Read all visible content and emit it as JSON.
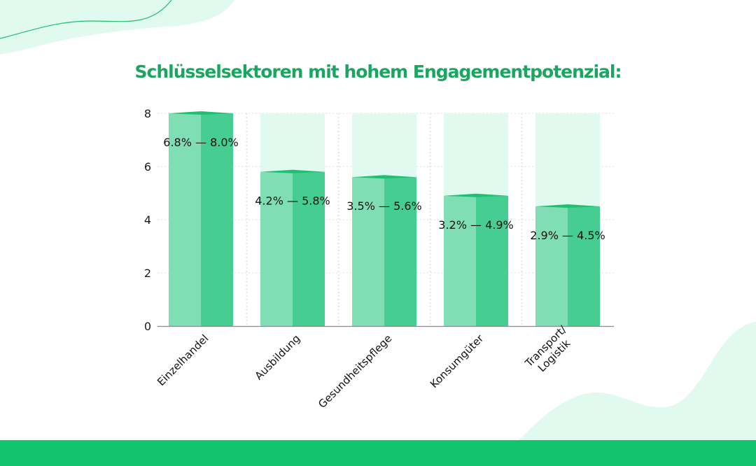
{
  "colors": {
    "accent": "#1aa560",
    "bar_light": "#7fdeb3",
    "bar_dark": "#46cd92",
    "bar_top": "#1fbf73",
    "bar_background": "#e0faef",
    "footer": "#12c46d",
    "blob": "#e0faef"
  },
  "chart_data": {
    "type": "bar",
    "title": "Schlüsselsektoren mit hohem Engagementpotenzial:",
    "categories": [
      "Einzelhandel",
      "Ausbildung",
      "Gesundheitspflege",
      "Konsumgüter",
      "Transport/\nLogistik"
    ],
    "category_lines": [
      [
        "Einzelhandel"
      ],
      [
        "Ausbildung"
      ],
      [
        "Gesundheitspflege"
      ],
      [
        "Konsumgüter"
      ],
      [
        "Transport/",
        "Logistik"
      ]
    ],
    "series": [
      {
        "values_low": [
          6.8,
          4.2,
          3.5,
          3.2,
          2.9
        ]
      },
      {
        "values": [
          8.0,
          5.8,
          5.6,
          4.9,
          4.5
        ]
      }
    ],
    "data_labels": [
      "6.8% — 8.0%",
      "4.2% — 5.8%",
      "3.5% — 5.6%",
      "3.2% — 4.9%",
      "2.9% — 4.5%"
    ],
    "y_ticks": [
      "0",
      "2",
      "4",
      "6",
      "8"
    ],
    "ylim": [
      0,
      8
    ],
    "xlabel": "",
    "ylabel": "",
    "grid": true,
    "legend": "none"
  }
}
